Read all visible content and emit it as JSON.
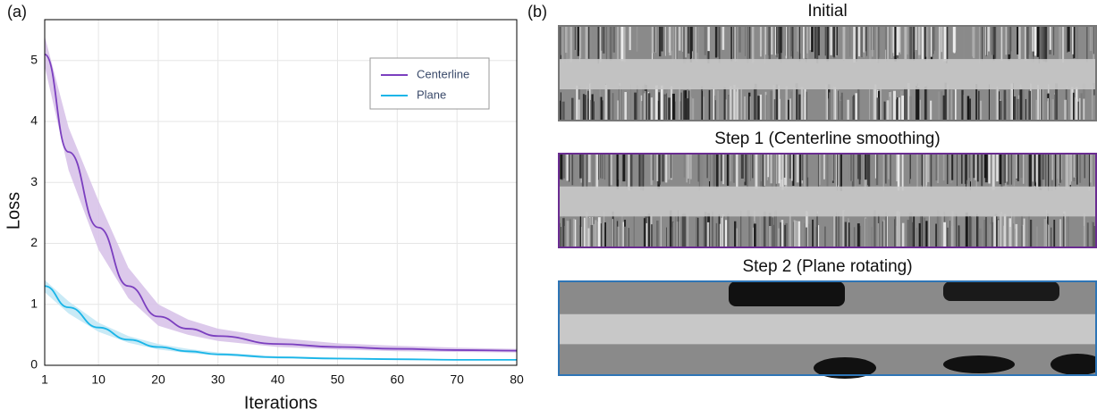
{
  "chart_data": {
    "type": "line",
    "panel_label": "(a)",
    "xlabel": "Iterations",
    "ylabel": "Loss",
    "x": [
      1,
      5,
      10,
      15,
      20,
      25,
      30,
      40,
      50,
      60,
      70,
      80
    ],
    "xlim": [
      1,
      80
    ],
    "xticks": [
      1,
      10,
      20,
      30,
      40,
      50,
      60,
      70,
      80
    ],
    "ylim": [
      0,
      5.67
    ],
    "yticks": [
      0,
      1,
      2,
      3,
      4,
      5
    ],
    "grid": true,
    "legend": "upper right",
    "series": [
      {
        "name": "Centerline",
        "color": "#7b3fbf",
        "band_color": "#d6bfe8",
        "values": [
          5.1,
          3.5,
          2.26,
          1.3,
          0.8,
          0.6,
          0.48,
          0.35,
          0.3,
          0.27,
          0.25,
          0.24
        ],
        "lower": [
          4.9,
          3.2,
          1.9,
          1.1,
          0.65,
          0.5,
          0.4,
          0.3,
          0.26,
          0.23,
          0.22,
          0.21
        ],
        "upper": [
          5.4,
          3.9,
          2.7,
          1.6,
          1.0,
          0.75,
          0.6,
          0.45,
          0.36,
          0.32,
          0.29,
          0.27
        ]
      },
      {
        "name": "Plane",
        "color": "#19b5e8",
        "band_color": "#bfe6f5",
        "values": [
          1.3,
          0.95,
          0.62,
          0.42,
          0.3,
          0.23,
          0.18,
          0.13,
          0.11,
          0.1,
          0.09,
          0.09
        ],
        "lower": [
          1.2,
          0.85,
          0.55,
          0.37,
          0.26,
          0.2,
          0.16,
          0.11,
          0.1,
          0.09,
          0.08,
          0.08
        ],
        "upper": [
          1.4,
          1.05,
          0.7,
          0.48,
          0.35,
          0.27,
          0.21,
          0.15,
          0.13,
          0.11,
          0.1,
          0.1
        ]
      }
    ]
  },
  "images_panel": {
    "panel_label": "(b)",
    "images": [
      {
        "title": "Initial",
        "border": "#777777"
      },
      {
        "title": "Step 1 (Centerline smoothing)",
        "border": "#6a2c91"
      },
      {
        "title": "Step 2 (Plane rotating)",
        "border": "#2e75b6"
      }
    ]
  }
}
